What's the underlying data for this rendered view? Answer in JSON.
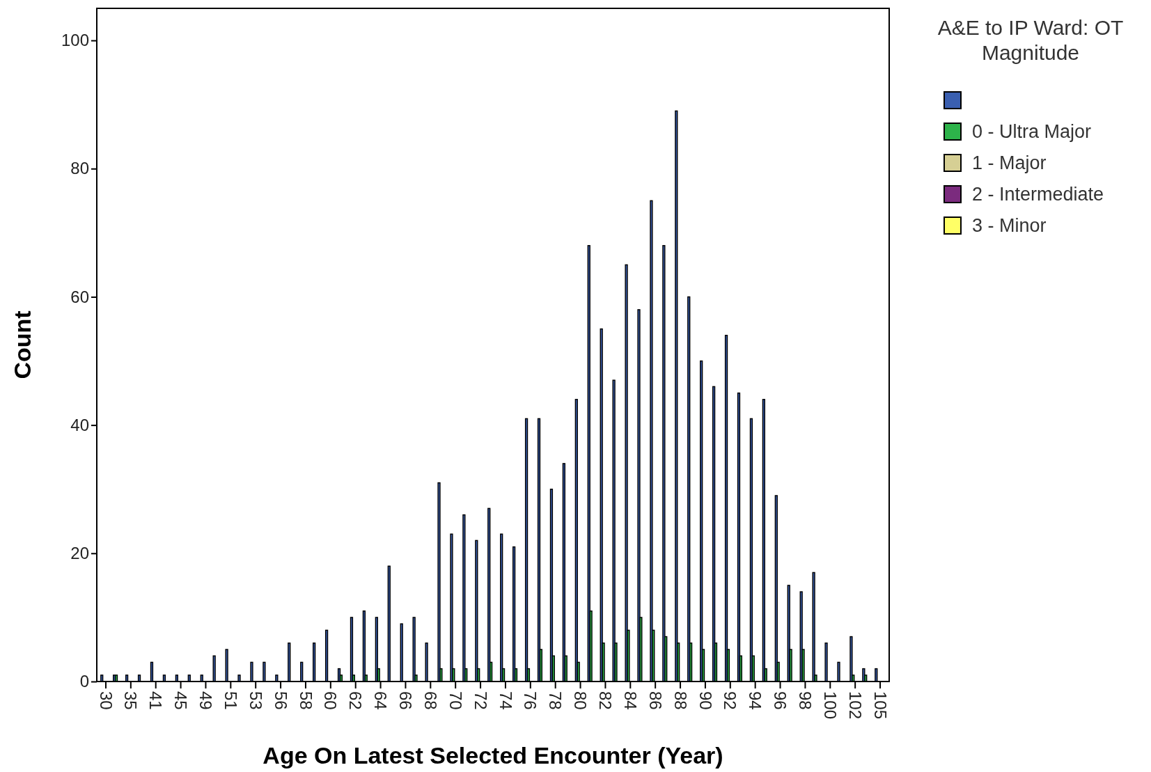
{
  "chart_data": {
    "type": "bar",
    "xlabel": "Age On Latest Selected Encounter (Year)",
    "ylabel": "Count",
    "legend_title": "A&E to IP Ward: OT Magnitude",
    "categories": [
      "30",
      null,
      "35",
      null,
      "41",
      null,
      "45",
      null,
      "49",
      null,
      "51",
      null,
      "53",
      null,
      "56",
      null,
      "58",
      null,
      "60",
      null,
      "62",
      null,
      "64",
      null,
      "66",
      null,
      "68",
      null,
      "70",
      null,
      "72",
      null,
      "74",
      null,
      "76",
      null,
      "78",
      null,
      "80",
      null,
      "82",
      null,
      "84",
      null,
      "86",
      null,
      "88",
      null,
      "90",
      null,
      "92",
      null,
      "94",
      null,
      "96",
      null,
      "98",
      null,
      "100",
      null,
      "102",
      null,
      "105"
    ],
    "series": [
      {
        "color": "#3a5fb0",
        "values": [
          1,
          1,
          1,
          1,
          3,
          1,
          1,
          1,
          1,
          4,
          5,
          1,
          3,
          3,
          1,
          6,
          3,
          6,
          8,
          2,
          10,
          11,
          10,
          18,
          9,
          10,
          6,
          31,
          23,
          26,
          22,
          27,
          23,
          21,
          41,
          41,
          30,
          34,
          44,
          68,
          55,
          47,
          65,
          58,
          75,
          68,
          89,
          60,
          50,
          46,
          54,
          45,
          41,
          44,
          29,
          15,
          14,
          17,
          6,
          3,
          7,
          2,
          2
        ]
      },
      {
        "name": "0 - Ultra Major",
        "color": "#2db34a",
        "values": [
          0,
          1,
          0,
          0,
          0,
          0,
          0,
          0,
          0,
          0,
          0,
          0,
          0,
          0,
          0,
          0,
          0,
          0,
          0,
          1,
          1,
          1,
          2,
          0,
          0,
          1,
          0,
          2,
          2,
          2,
          2,
          3,
          2,
          2,
          2,
          5,
          4,
          4,
          3,
          11,
          6,
          6,
          8,
          10,
          8,
          7,
          6,
          6,
          5,
          6,
          5,
          4,
          4,
          2,
          3,
          5,
          5,
          1,
          0,
          0,
          1,
          1,
          0
        ]
      },
      {
        "name": "1 - Major",
        "color": "#d6cf94",
        "values": [
          0,
          0,
          0,
          0,
          0,
          0,
          0,
          0,
          0,
          0,
          0,
          0,
          0,
          0,
          0,
          0,
          0,
          0,
          0,
          0,
          0,
          0,
          0,
          0,
          0,
          0,
          0,
          0,
          0,
          0,
          0,
          0,
          0,
          0,
          0,
          0,
          0,
          0,
          0,
          0,
          0,
          0,
          0,
          0,
          0,
          0,
          0,
          0,
          0,
          0,
          0,
          0,
          0,
          0,
          0,
          0,
          0,
          0,
          0,
          0,
          0,
          0,
          0
        ]
      },
      {
        "name": "2 - Intermediate",
        "color": "#7b2b7e",
        "values": [
          0,
          0,
          0,
          0,
          0,
          0,
          0,
          0,
          0,
          0,
          0,
          0,
          0,
          0,
          0,
          0,
          0,
          0,
          0,
          0,
          0,
          0,
          0,
          0,
          0,
          0,
          0,
          0,
          0,
          0,
          0,
          0,
          0,
          0,
          0,
          0,
          0,
          0,
          0,
          0,
          0,
          0,
          0,
          0,
          0,
          0,
          0,
          0,
          0,
          0,
          0,
          0,
          0,
          0,
          0,
          0,
          0,
          0,
          0,
          0,
          0,
          0,
          0
        ]
      },
      {
        "name": "3 - Minor",
        "color": "#ffff66",
        "values": [
          0,
          0,
          0,
          0,
          0,
          0,
          0,
          0,
          0,
          0,
          0,
          0,
          0,
          0,
          0,
          0,
          0,
          0,
          0,
          0,
          0,
          0,
          0,
          0,
          0,
          0,
          0,
          0,
          0,
          0,
          0,
          0,
          0,
          0,
          0,
          0,
          0,
          0,
          0,
          0,
          0,
          0,
          0,
          0,
          0,
          0,
          0,
          0,
          0,
          0,
          0,
          0,
          0,
          0,
          0,
          0,
          0,
          0,
          0,
          0,
          0,
          0,
          0
        ]
      }
    ],
    "ylim": [
      0,
      105
    ],
    "yticks": [
      0,
      20,
      40,
      60,
      80,
      100
    ],
    "legend": "top right"
  }
}
